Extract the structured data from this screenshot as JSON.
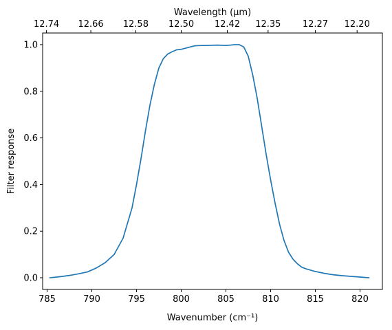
{
  "chart_data": {
    "type": "line",
    "xlabel": "Wavenumber (cm⁻¹)",
    "ylabel": "Filter response",
    "secondary_xlabel": "Wavelength (μm)",
    "xlim": [
      784.5,
      822.5
    ],
    "ylim": [
      -0.05,
      1.05
    ],
    "grid": false,
    "legend": "none",
    "x_ticks": [
      785,
      790,
      795,
      800,
      805,
      810,
      815,
      820
    ],
    "x_tick_labels": [
      "785",
      "790",
      "795",
      "800",
      "805",
      "810",
      "815",
      "820"
    ],
    "y_ticks": [
      0.0,
      0.2,
      0.4,
      0.6,
      0.8,
      1.0
    ],
    "y_tick_labels": [
      "0.0",
      "0.2",
      "0.4",
      "0.6",
      "0.8",
      "1.0"
    ],
    "top_ticks": [
      12.74,
      12.66,
      12.58,
      12.5,
      12.42,
      12.35,
      12.27,
      12.2
    ],
    "top_tick_labels": [
      "12.74",
      "12.66",
      "12.58",
      "12.50",
      "12.42",
      "12.35",
      "12.27",
      "12.20"
    ],
    "series": [
      {
        "color": "#1f77b4",
        "x": [
          785.3,
          786.5,
          787.5,
          788.5,
          789.5,
          790.5,
          791.5,
          792.5,
          793.5,
          794.5,
          795.0,
          795.5,
          796.0,
          796.5,
          797.0,
          797.5,
          798.0,
          798.5,
          799.0,
          799.5,
          800.0,
          800.5,
          801.0,
          801.5,
          802.0,
          803.0,
          804.0,
          805.0,
          805.5,
          806.0,
          806.5,
          807.0,
          807.5,
          808.0,
          808.5,
          809.0,
          809.5,
          810.0,
          810.5,
          811.0,
          811.5,
          812.0,
          812.5,
          813.0,
          813.5,
          814.0,
          815.0,
          816.0,
          817.0,
          818.0,
          819.0,
          820.0,
          821.0
        ],
        "y": [
          0.0,
          0.005,
          0.01,
          0.017,
          0.025,
          0.042,
          0.065,
          0.1,
          0.17,
          0.3,
          0.4,
          0.51,
          0.63,
          0.74,
          0.83,
          0.9,
          0.94,
          0.96,
          0.97,
          0.978,
          0.98,
          0.985,
          0.99,
          0.995,
          0.996,
          0.997,
          0.998,
          0.997,
          0.998,
          1.0,
          1.0,
          0.99,
          0.95,
          0.87,
          0.77,
          0.65,
          0.53,
          0.42,
          0.32,
          0.23,
          0.16,
          0.11,
          0.08,
          0.06,
          0.045,
          0.038,
          0.027,
          0.019,
          0.013,
          0.009,
          0.006,
          0.003,
          0.0
        ]
      }
    ]
  }
}
